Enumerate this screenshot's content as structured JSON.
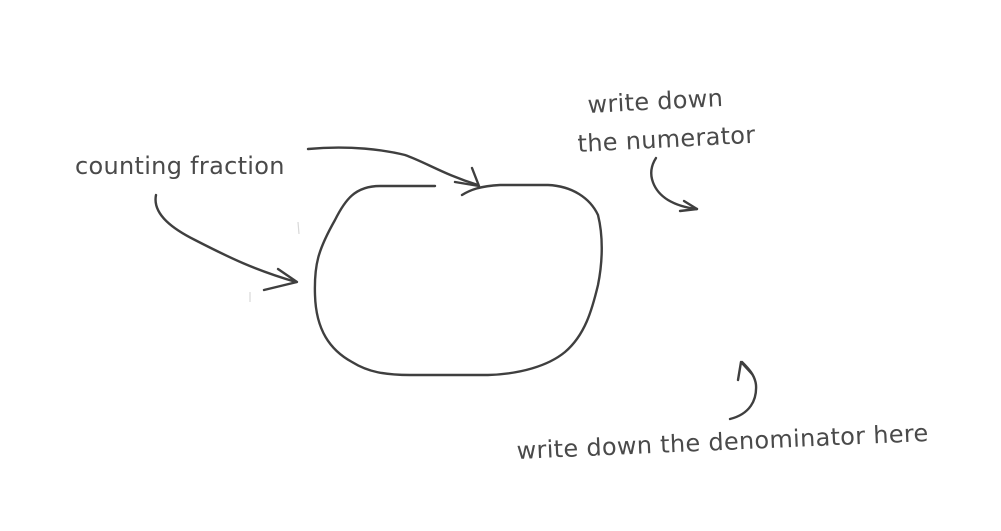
{
  "labels": {
    "counting_fraction": "counting fraction",
    "numerator_line1": "write down",
    "numerator_line2": "the numerator",
    "denominator": "write down the denominator here"
  },
  "colors": {
    "ink": "#3f3f3f",
    "text": "#4a4a4a",
    "background": "#ffffff"
  }
}
